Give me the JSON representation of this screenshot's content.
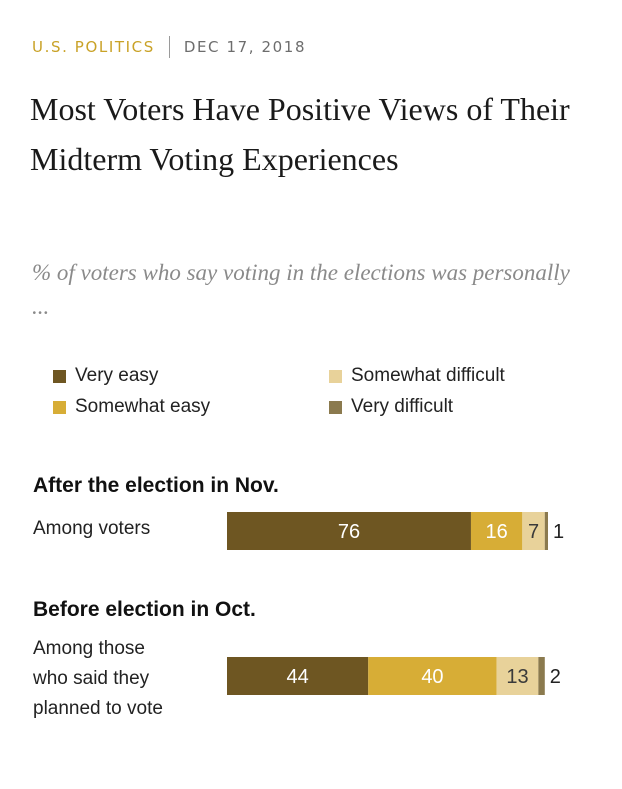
{
  "kicker": {
    "category": "U.S. POLITICS",
    "date": "DEC 17, 2018"
  },
  "title": "Most Voters Have Positive Views of Their Midterm Voting Experiences",
  "subtitle": "% of voters who say voting in the elections was personally ...",
  "legend": [
    {
      "label": "Very easy",
      "color": "#6e5622"
    },
    {
      "label": "Somewhat easy",
      "color": "#d7ad36"
    },
    {
      "label": "Somewhat difficult",
      "color": "#e8d29a"
    },
    {
      "label": "Very difficult",
      "color": "#8b7a4e"
    }
  ],
  "chart_data": {
    "type": "bar",
    "orientation": "horizontal-stacked",
    "categories": [
      "Among voters",
      "Among those who said they planned to vote"
    ],
    "groups": [
      "After the election in Nov.",
      "Before election in Oct."
    ],
    "series": [
      {
        "name": "Very easy",
        "values": [
          76,
          44
        ],
        "color": "#6e5622"
      },
      {
        "name": "Somewhat easy",
        "values": [
          16,
          40
        ],
        "color": "#d7ad36"
      },
      {
        "name": "Somewhat difficult",
        "values": [
          7,
          13
        ],
        "color": "#e8d29a"
      },
      {
        "name": "Very difficult",
        "values": [
          1,
          2
        ],
        "color": "#8b7a4e"
      }
    ],
    "xlim": [
      0,
      100
    ]
  },
  "sections": [
    {
      "heading": "After the election in Nov.",
      "row_label": "Among voters"
    },
    {
      "heading": "Before election in Oct.",
      "row_label": "Among those\nwho said they\nplanned to vote"
    }
  ]
}
